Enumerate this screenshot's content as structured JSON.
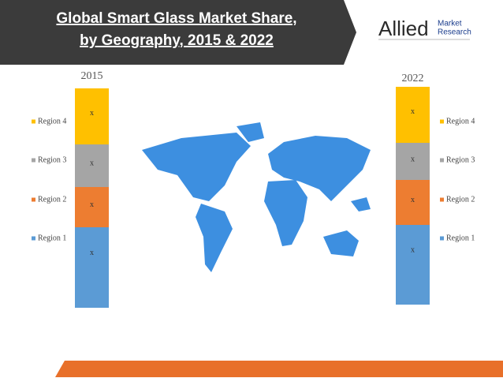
{
  "header": {
    "title_lines": [
      "Global Smart Glass Market Share,",
      "by Geography, 2015 & 2022"
    ]
  },
  "logo": {
    "name": "Allied",
    "sub_lines": [
      "Market",
      "Research"
    ]
  },
  "bars": [
    {
      "year": "2015",
      "segments": [
        {
          "name": "Region 4",
          "label": "x"
        },
        {
          "name": "Region 3",
          "label": "x"
        },
        {
          "name": "Region 2",
          "label": "x"
        },
        {
          "name": "Region 1",
          "label": "x"
        }
      ]
    },
    {
      "year": "2022",
      "segments": [
        {
          "name": "Region 4",
          "label": "x"
        },
        {
          "name": "Region 3",
          "label": "x"
        },
        {
          "name": "Region 2",
          "label": "x"
        },
        {
          "name": "Region 1",
          "label": "x"
        }
      ]
    }
  ]
}
